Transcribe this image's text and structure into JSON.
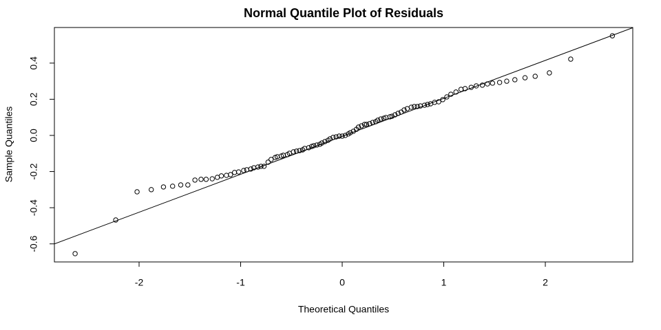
{
  "chart_data": {
    "type": "scatter",
    "title": "Normal Quantile Plot of Residuals",
    "x_label": "Theoretical Quantiles",
    "y_label": "Sample Quantiles",
    "x": [
      -2.63,
      -2.23,
      -2.02,
      -1.88,
      -1.76,
      -1.67,
      -1.59,
      -1.52,
      -1.45,
      -1.39,
      -1.34,
      -1.28,
      -1.23,
      -1.19,
      -1.14,
      -1.1,
      -1.06,
      -1.02,
      -0.97,
      -0.94,
      -0.9,
      -0.87,
      -0.83,
      -0.8,
      -0.77,
      -0.73,
      -0.7,
      -0.66,
      -0.64,
      -0.6,
      -0.58,
      -0.54,
      -0.52,
      -0.48,
      -0.45,
      -0.42,
      -0.39,
      -0.37,
      -0.33,
      -0.3,
      -0.28,
      -0.25,
      -0.22,
      -0.2,
      -0.17,
      -0.14,
      -0.12,
      -0.09,
      -0.06,
      -0.03,
      0.0,
      0.03,
      0.06,
      0.08,
      0.11,
      0.14,
      0.16,
      0.19,
      0.22,
      0.24,
      0.27,
      0.3,
      0.33,
      0.35,
      0.38,
      0.41,
      0.43,
      0.47,
      0.49,
      0.52,
      0.55,
      0.58,
      0.61,
      0.64,
      0.68,
      0.71,
      0.74,
      0.77,
      0.81,
      0.84,
      0.87,
      0.91,
      0.95,
      0.99,
      1.03,
      1.07,
      1.12,
      1.17,
      1.21,
      1.27,
      1.32,
      1.38,
      1.43,
      1.48,
      1.55,
      1.62,
      1.7,
      1.8,
      1.9,
      2.04,
      2.25,
      2.66
    ],
    "values": [
      -0.654,
      -0.468,
      -0.312,
      -0.3,
      -0.285,
      -0.281,
      -0.274,
      -0.274,
      -0.247,
      -0.243,
      -0.243,
      -0.24,
      -0.232,
      -0.224,
      -0.221,
      -0.217,
      -0.205,
      -0.202,
      -0.194,
      -0.19,
      -0.186,
      -0.179,
      -0.175,
      -0.171,
      -0.171,
      -0.148,
      -0.133,
      -0.122,
      -0.118,
      -0.114,
      -0.11,
      -0.106,
      -0.099,
      -0.091,
      -0.087,
      -0.084,
      -0.08,
      -0.072,
      -0.068,
      -0.061,
      -0.057,
      -0.053,
      -0.049,
      -0.042,
      -0.034,
      -0.027,
      -0.019,
      -0.011,
      -0.008,
      -0.004,
      -0.004,
      0.0,
      0.008,
      0.015,
      0.023,
      0.034,
      0.046,
      0.053,
      0.061,
      0.061,
      0.065,
      0.072,
      0.076,
      0.084,
      0.091,
      0.095,
      0.099,
      0.103,
      0.106,
      0.114,
      0.122,
      0.129,
      0.141,
      0.148,
      0.156,
      0.16,
      0.16,
      0.163,
      0.167,
      0.171,
      0.175,
      0.183,
      0.186,
      0.198,
      0.213,
      0.228,
      0.24,
      0.255,
      0.259,
      0.266,
      0.274,
      0.278,
      0.285,
      0.289,
      0.293,
      0.3,
      0.308,
      0.319,
      0.327,
      0.346,
      0.422,
      0.551
    ],
    "color": "#000000",
    "reference_line": {
      "intercept": -0.005,
      "slope": 0.21
    },
    "xlim": [
      -2.834,
      2.861
    ],
    "ylim": [
      -0.7,
      0.597
    ],
    "xticks": [
      -2,
      -1,
      0,
      1,
      2
    ],
    "yticks": [
      -0.6,
      -0.4,
      -0.2,
      {
        "value": 0,
        "label": "0.0"
      },
      0.2,
      0.4
    ]
  }
}
